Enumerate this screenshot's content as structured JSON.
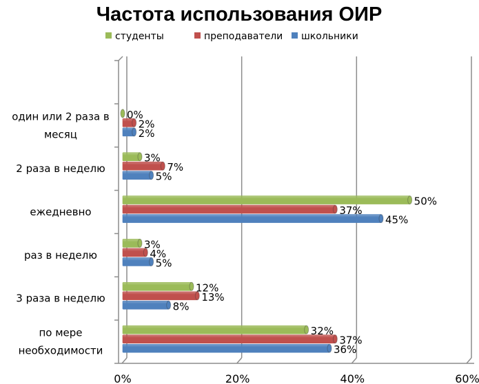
{
  "chart_data": {
    "type": "bar",
    "orientation": "horizontal",
    "style": "3d-cylinder",
    "title": "Частота использования ОИР",
    "categories": [
      "один или 2 раза в месяц",
      "2 раза в неделю",
      "ежедневно",
      "раз в неделю",
      "3 раза в неделю",
      "по мере необходимости"
    ],
    "category_lines": [
      [
        "один или 2 раза в",
        "месяц"
      ],
      [
        "2 раза в неделю"
      ],
      [
        "ежедневно"
      ],
      [
        "раз в неделю"
      ],
      [
        "3 раза в неделю"
      ],
      [
        "по мере",
        "необходимости"
      ]
    ],
    "series": [
      {
        "name": "студенты",
        "color": "#9BBB59",
        "values": [
          0,
          3,
          50,
          3,
          12,
          32
        ]
      },
      {
        "name": "преподаватели",
        "color": "#C0504D",
        "values": [
          2,
          7,
          37,
          4,
          13,
          37
        ]
      },
      {
        "name": "школьники",
        "color": "#4F81BD",
        "values": [
          2,
          5,
          45,
          5,
          8,
          36
        ]
      }
    ],
    "xlim": [
      0,
      60
    ],
    "xticks": [
      "0%",
      "20%",
      "40%",
      "60%"
    ],
    "grid": true,
    "legend_position": "top",
    "data_label_suffix": "%"
  }
}
